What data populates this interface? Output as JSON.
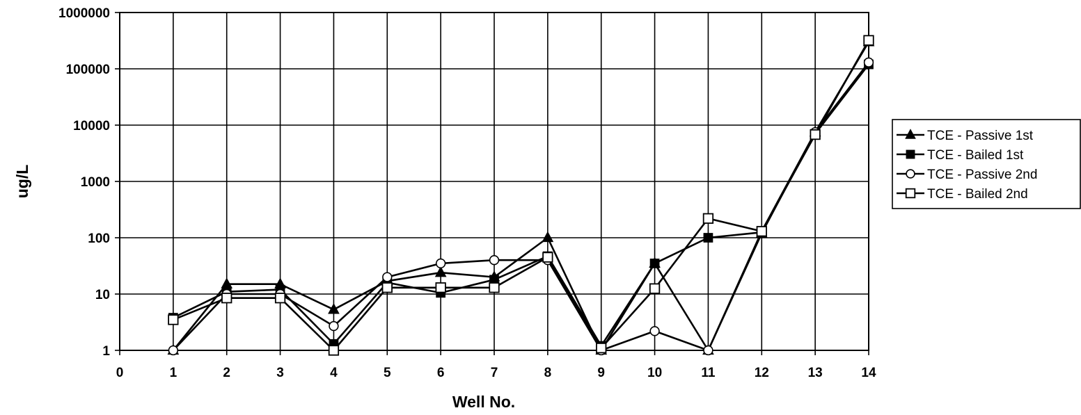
{
  "chart_data": {
    "type": "line",
    "xlabel": "Well No.",
    "ylabel": "ug/L",
    "y_scale": "log",
    "ylim": [
      1,
      1000000
    ],
    "xlim": [
      0,
      14
    ],
    "x_ticks": [
      "0",
      "1",
      "2",
      "3",
      "4",
      "5",
      "6",
      "7",
      "8",
      "9",
      "10",
      "11",
      "12",
      "13",
      "14"
    ],
    "y_ticks": [
      "1",
      "10",
      "100",
      "1000",
      "10000",
      "100000",
      "1000000"
    ],
    "grid": true,
    "legend_position": "right",
    "series": [
      {
        "name": "TCE - Passive 1st",
        "marker": "filled-triangle",
        "color": "#000000",
        "x": [
          1,
          2,
          3,
          4,
          5,
          6,
          7,
          8,
          9,
          10,
          11,
          12,
          13,
          14
        ],
        "values": [
          1,
          15,
          15,
          5.3,
          17,
          24,
          20,
          100,
          1,
          35,
          1,
          120,
          7500,
          300000
        ]
      },
      {
        "name": "TCE - Bailed 1st",
        "marker": "filled-square",
        "color": "#000000",
        "x": [
          1,
          2,
          3,
          4,
          5,
          6,
          7,
          8,
          9,
          10,
          11,
          12,
          13,
          14
        ],
        "values": [
          3.8,
          11,
          12,
          1.3,
          16,
          10.5,
          18,
          47,
          1.2,
          35,
          100,
          125,
          7000,
          120000
        ]
      },
      {
        "name": "TCE - Passive 2nd",
        "marker": "open-circle",
        "color": "#000000",
        "x": [
          1,
          2,
          3,
          4,
          5,
          6,
          7,
          8,
          9,
          10,
          11,
          12,
          13,
          14
        ],
        "values": [
          1,
          10,
          10,
          2.7,
          20,
          35,
          40,
          40,
          1,
          2.2,
          1,
          130,
          7500,
          130000
        ]
      },
      {
        "name": "TCE - Bailed 2nd",
        "marker": "open-square",
        "color": "#000000",
        "x": [
          1,
          2,
          3,
          4,
          5,
          6,
          7,
          8,
          9,
          10,
          11,
          12,
          13,
          14
        ],
        "values": [
          3.5,
          8.5,
          8.5,
          1,
          13,
          13,
          13,
          45,
          1.1,
          12.5,
          220,
          130,
          6800,
          320000
        ]
      }
    ]
  }
}
